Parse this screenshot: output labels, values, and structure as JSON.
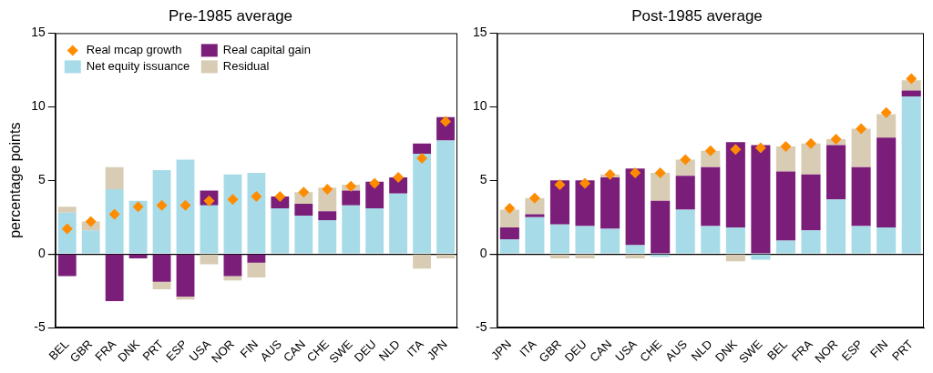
{
  "chart_data": [
    {
      "type": "bar",
      "title": "Pre-1985 average",
      "y_label": "percentage points",
      "categories": [
        "BEL",
        "GBR",
        "FRA",
        "DNK",
        "PRT",
        "ESP",
        "USA",
        "NOR",
        "FIN",
        "AUS",
        "CAN",
        "CHE",
        "SWE",
        "DEU",
        "NLD",
        "ITA",
        "JPN"
      ],
      "series": [
        {
          "name": "Real mcap growth",
          "type": "scatter",
          "marker": "diamond",
          "color": "#ff8c00",
          "values": [
            1.7,
            2.2,
            2.7,
            3.2,
            3.3,
            3.3,
            3.6,
            3.7,
            3.9,
            3.9,
            4.2,
            4.4,
            4.6,
            4.8,
            5.2,
            6.5,
            9.0
          ]
        },
        {
          "name": "Net equity issuance",
          "color": "#a8dbe8",
          "values": [
            2.8,
            1.6,
            4.4,
            3.6,
            5.7,
            6.4,
            3.3,
            5.4,
            5.5,
            3.1,
            2.6,
            2.3,
            3.3,
            3.1,
            4.1,
            6.8,
            7.7
          ]
        },
        {
          "name": "Real capital gain",
          "color": "#7b1e7a",
          "values": [
            -1.5,
            0,
            -3.2,
            -0.3,
            -1.9,
            -2.9,
            1.0,
            -1.5,
            -0.6,
            0.8,
            0.8,
            0.6,
            1.0,
            1.8,
            1.1,
            0.7,
            1.6
          ]
        },
        {
          "name": "Residual",
          "color": "#d8ccb4",
          "values": [
            0.4,
            0.6,
            1.5,
            0,
            -0.5,
            -0.2,
            -0.7,
            -0.3,
            -1.0,
            0,
            0.8,
            1.6,
            0.4,
            0,
            0,
            -1.0,
            -0.3
          ]
        }
      ],
      "ylim": [
        -5,
        15
      ],
      "yticks": [
        -5,
        0,
        5,
        10,
        15
      ],
      "stacked": true,
      "grid": false,
      "legend": "top left"
    },
    {
      "type": "bar",
      "title": "Post-1985 average",
      "categories": [
        "JPN",
        "ITA",
        "GBR",
        "DEU",
        "CAN",
        "USA",
        "CHE",
        "AUS",
        "NLD",
        "DNK",
        "SWE",
        "BEL",
        "FRA",
        "NOR",
        "ESP",
        "FIN",
        "PRT"
      ],
      "series": [
        {
          "name": "Real mcap growth",
          "type": "scatter",
          "marker": "diamond",
          "color": "#ff8c00",
          "values": [
            3.1,
            3.8,
            4.7,
            4.8,
            5.4,
            5.5,
            5.5,
            6.4,
            7.0,
            7.1,
            7.2,
            7.3,
            7.5,
            7.8,
            8.5,
            9.6,
            11.9
          ]
        },
        {
          "name": "Net equity issuance",
          "color": "#a8dbe8",
          "values": [
            1.0,
            2.5,
            2.0,
            1.9,
            1.7,
            0.6,
            -0.2,
            3.0,
            1.9,
            1.8,
            -0.4,
            0.9,
            1.6,
            3.7,
            1.9,
            1.8,
            10.7
          ]
        },
        {
          "name": "Real capital gain",
          "color": "#7b1e7a",
          "values": [
            0.8,
            0.2,
            3.0,
            3.1,
            3.5,
            5.2,
            3.6,
            2.3,
            4.0,
            5.8,
            7.4,
            4.7,
            3.8,
            3.7,
            4.0,
            6.1,
            0.4
          ]
        },
        {
          "name": "Residual",
          "color": "#d8ccb4",
          "values": [
            1.2,
            1.1,
            -0.3,
            -0.3,
            0.2,
            -0.3,
            1.9,
            1.1,
            1.1,
            -0.5,
            0,
            1.7,
            2.1,
            0.4,
            2.6,
            1.6,
            0.7
          ]
        }
      ],
      "ylim": [
        -5,
        15
      ],
      "yticks": [
        -5,
        0,
        5,
        10,
        15
      ],
      "stacked": true,
      "grid": false
    }
  ]
}
